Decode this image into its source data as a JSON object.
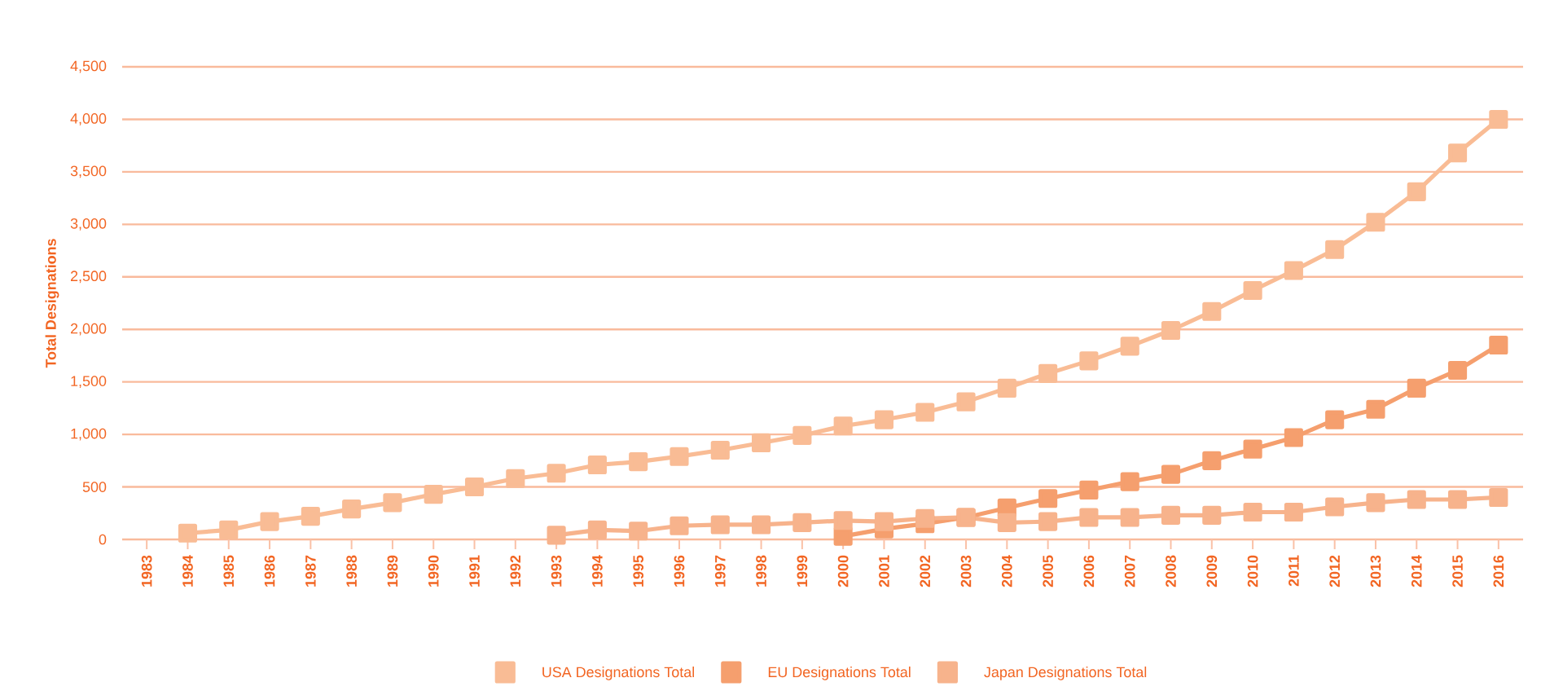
{
  "chart_data": {
    "type": "line",
    "ylabel": "Total Designations",
    "categories": [
      "1983",
      "1984",
      "1985",
      "1986",
      "1987",
      "1988",
      "1989",
      "1990",
      "1991",
      "1992",
      "1993",
      "1994",
      "1995",
      "1996",
      "1997",
      "1998",
      "1999",
      "2000",
      "2001",
      "2002",
      "2003",
      "2004",
      "2005",
      "2006",
      "2007",
      "2008",
      "2009",
      "2010",
      "2011",
      "2012",
      "2013",
      "2014",
      "2015",
      "2016"
    ],
    "series": [
      {
        "name": "USA Designations Total",
        "color": "#f9bc95",
        "values": [
          null,
          60,
          90,
          170,
          220,
          290,
          350,
          430,
          500,
          580,
          630,
          710,
          740,
          790,
          850,
          920,
          990,
          1080,
          1140,
          1210,
          1310,
          1440,
          1580,
          1700,
          1840,
          1990,
          2170,
          2370,
          2560,
          2760,
          3020,
          3310,
          3680,
          4000
        ]
      },
      {
        "name": "EU Designations Total",
        "color": "#f59f6e",
        "values": [
          null,
          null,
          null,
          null,
          null,
          null,
          null,
          null,
          null,
          null,
          null,
          null,
          null,
          null,
          null,
          null,
          null,
          30,
          100,
          150,
          210,
          300,
          390,
          470,
          550,
          620,
          750,
          860,
          970,
          1140,
          1240,
          1440,
          1610,
          1850
        ]
      },
      {
        "name": "Japan Designations Total",
        "color": "#f7b38c",
        "values": [
          null,
          null,
          null,
          null,
          null,
          null,
          null,
          null,
          null,
          null,
          40,
          90,
          80,
          130,
          140,
          140,
          160,
          180,
          170,
          200,
          210,
          160,
          170,
          210,
          210,
          230,
          230,
          260,
          260,
          310,
          350,
          380,
          380,
          400
        ]
      }
    ],
    "ylim": [
      0,
      4500
    ],
    "yticks": [
      0,
      {
        "value": 500,
        "label": "500"
      },
      {
        "value": 1000,
        "label": "1,000"
      },
      {
        "value": 1500,
        "label": "1,500"
      },
      {
        "value": 2000,
        "label": "2,000"
      },
      {
        "value": 2500,
        "label": "2,500"
      },
      {
        "value": 3000,
        "label": "3,000"
      },
      {
        "value": 3500,
        "label": "3,500"
      },
      {
        "value": 4000,
        "label": "4,000"
      },
      {
        "value": 4500,
        "label": "4,500"
      }
    ],
    "grid": "y",
    "legend": "bottom",
    "marker": "square",
    "line_style": "solid"
  }
}
